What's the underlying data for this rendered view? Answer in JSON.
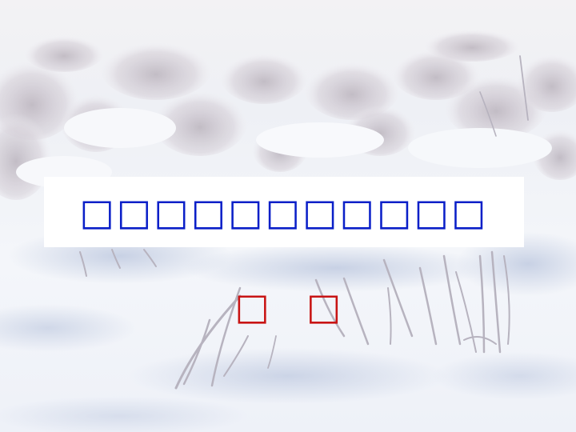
{
  "slide": {
    "title": "□□□□□□□□□□□",
    "author": [
      "□",
      "□"
    ]
  },
  "colors": {
    "title_text": "#0a1fc8",
    "author_text": "#c81414",
    "title_box": "#ffffff",
    "snow_base": "#f4f6fa",
    "snow_shadow": "#cdd5e6",
    "frost_bush": "#c9c2cc"
  }
}
